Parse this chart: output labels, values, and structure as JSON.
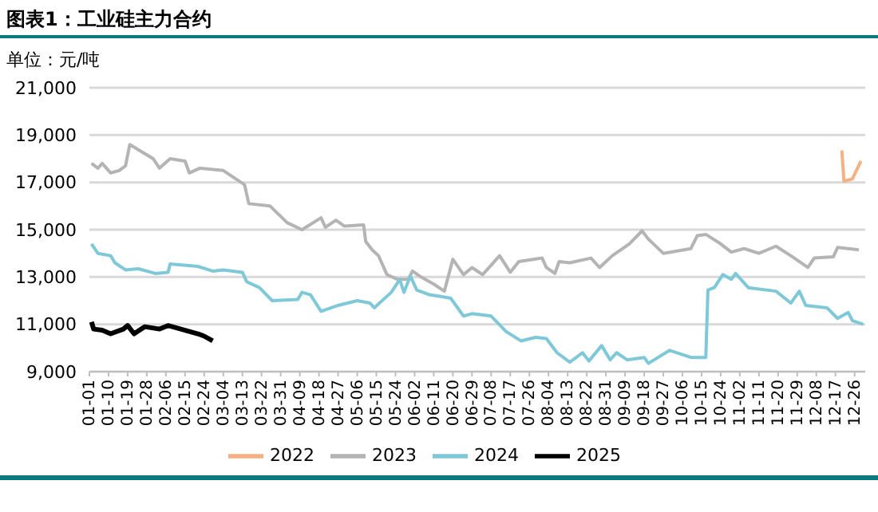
{
  "chart_data": {
    "type": "line",
    "title": "图表1：工业硅主力合约",
    "ylabel": "单位：元/吨",
    "xlim": [
      "--01-01",
      "--12-31"
    ],
    "xticks": [
      {
        "value": "--01-01",
        "label": "01-01"
      },
      {
        "value": "--01-10",
        "label": "01-10"
      },
      {
        "value": "--01-19",
        "label": "01-19"
      },
      {
        "value": "--01-28",
        "label": "01-28"
      },
      {
        "value": "--02-06",
        "label": "02-06"
      },
      {
        "value": "--02-15",
        "label": "02-15"
      },
      {
        "value": "--02-24",
        "label": "02-24"
      },
      {
        "value": "--03-04",
        "label": "03-04"
      },
      {
        "value": "--03-13",
        "label": "03-13"
      },
      {
        "value": "--03-22",
        "label": "03-22"
      },
      {
        "value": "--03-31",
        "label": "03-31"
      },
      {
        "value": "--04-09",
        "label": "04-09"
      },
      {
        "value": "--04-18",
        "label": "04-18"
      },
      {
        "value": "--04-27",
        "label": "04-27"
      },
      {
        "value": "--05-06",
        "label": "05-06"
      },
      {
        "value": "--05-15",
        "label": "05-15"
      },
      {
        "value": "--05-24",
        "label": "05-24"
      },
      {
        "value": "--06-02",
        "label": "06-02"
      },
      {
        "value": "--06-11",
        "label": "06-11"
      },
      {
        "value": "--06-20",
        "label": "06-20"
      },
      {
        "value": "--06-29",
        "label": "06-29"
      },
      {
        "value": "--07-08",
        "label": "07-08"
      },
      {
        "value": "--07-17",
        "label": "07-17"
      },
      {
        "value": "--07-26",
        "label": "07-26"
      },
      {
        "value": "--08-04",
        "label": "08-04"
      },
      {
        "value": "--08-13",
        "label": "08-13"
      },
      {
        "value": "--08-22",
        "label": "08-22"
      },
      {
        "value": "--08-31",
        "label": "08-31"
      },
      {
        "value": "--09-09",
        "label": "09-09"
      },
      {
        "value": "--09-18",
        "label": "09-18"
      },
      {
        "value": "--09-27",
        "label": "09-27"
      },
      {
        "value": "--10-06",
        "label": "10-06"
      },
      {
        "value": "--10-15",
        "label": "10-15"
      },
      {
        "value": "--10-24",
        "label": "10-24"
      },
      {
        "value": "--11-02",
        "label": "11-02"
      },
      {
        "value": "--11-11",
        "label": "11-11"
      },
      {
        "value": "--11-20",
        "label": "11-20"
      },
      {
        "value": "--11-29",
        "label": "11-29"
      },
      {
        "value": "--12-08",
        "label": "12-08"
      },
      {
        "value": "--12-17",
        "label": "12-17"
      },
      {
        "value": "--12-26",
        "label": "12-26"
      }
    ],
    "ylim": [
      9000,
      21000
    ],
    "yticks": [
      {
        "value": 9000,
        "label": "9,000"
      },
      {
        "value": 11000,
        "label": "11,000"
      },
      {
        "value": 13000,
        "label": "13,000"
      },
      {
        "value": 15000,
        "label": "15,000"
      },
      {
        "value": 17000,
        "label": "17,000"
      },
      {
        "value": 19000,
        "label": "19,000"
      },
      {
        "value": 21000,
        "label": "21,000"
      }
    ],
    "grid": "y",
    "legend": "bottom",
    "marker": "none",
    "line_style": "solid",
    "series": [
      {
        "name": "2022",
        "color": "#f4b183",
        "x": [
          "--12-20",
          "--12-21",
          "--12-25",
          "--12-29"
        ],
        "values": [
          18350,
          17050,
          17150,
          17900
        ]
      },
      {
        "name": "2023",
        "color": "#b4b4b4",
        "x": [
          "--01-02",
          "--01-05",
          "--01-07",
          "--01-11",
          "--01-15",
          "--01-18",
          "--01-20",
          "--01-31",
          "--02-03",
          "--02-08",
          "--02-15",
          "--02-17",
          "--02-22",
          "--03-04",
          "--03-14",
          "--03-16",
          "--03-26",
          "--04-03",
          "--04-10",
          "--04-19",
          "--04-21",
          "--04-26",
          "--04-30",
          "--05-09",
          "--05-10",
          "--05-13",
          "--05-16",
          "--05-20",
          "--05-25",
          "--05-30",
          "--06-01",
          "--06-05",
          "--06-11",
          "--06-16",
          "--06-20",
          "--06-25",
          "--06-29",
          "--07-04",
          "--07-12",
          "--07-17",
          "--07-21",
          "--08-01",
          "--08-03",
          "--08-07",
          "--08-09",
          "--08-14",
          "--08-24",
          "--08-28",
          "--09-03",
          "--09-11",
          "--09-17",
          "--09-20",
          "--09-27",
          "--10-10",
          "--10-13",
          "--10-17",
          "--10-24",
          "--10-29",
          "--11-04",
          "--11-11",
          "--11-19",
          "--11-26",
          "--12-04",
          "--12-07",
          "--12-16",
          "--12-18",
          "--12-28"
        ],
        "values": [
          17800,
          17600,
          17800,
          17400,
          17500,
          17700,
          18600,
          18000,
          17600,
          18000,
          17900,
          17400,
          17600,
          17500,
          16900,
          16100,
          16000,
          15300,
          15000,
          15500,
          15100,
          15400,
          15150,
          15200,
          14500,
          14150,
          13900,
          13100,
          12900,
          12900,
          13250,
          13000,
          12700,
          12400,
          13750,
          13100,
          13400,
          13100,
          13900,
          13200,
          13650,
          13800,
          13400,
          13150,
          13650,
          13600,
          13800,
          13400,
          13900,
          14400,
          14950,
          14600,
          14000,
          14200,
          14750,
          14800,
          14400,
          14050,
          14200,
          14000,
          14300,
          13900,
          13400,
          13800,
          13850,
          14250,
          14150
        ]
      },
      {
        "name": "2024",
        "color": "#7ec8d8",
        "x": [
          "--01-02",
          "--01-05",
          "--01-11",
          "--01-13",
          "--01-18",
          "--01-24",
          "--02-01",
          "--02-07",
          "--02-08",
          "--02-21",
          "--02-28",
          "--03-04",
          "--03-13",
          "--03-15",
          "--03-21",
          "--03-27",
          "--04-08",
          "--04-10",
          "--04-14",
          "--04-19",
          "--04-27",
          "--05-06",
          "--05-12",
          "--05-14",
          "--05-22",
          "--05-26",
          "--05-28",
          "--05-31",
          "--06-03",
          "--06-09",
          "--06-16",
          "--06-19",
          "--06-25",
          "--06-29",
          "--07-08",
          "--07-15",
          "--07-22",
          "--07-29",
          "--08-03",
          "--08-08",
          "--08-14",
          "--08-20",
          "--08-23",
          "--08-29",
          "--09-02",
          "--09-05",
          "--09-10",
          "--09-18",
          "--09-20",
          "--09-30",
          "--10-10",
          "--10-17",
          "--10-18",
          "--10-21",
          "--10-25",
          "--10-29",
          "--10-31",
          "--11-06",
          "--11-19",
          "--11-26",
          "--11-30",
          "--12-03",
          "--12-13",
          "--12-18",
          "--12-23",
          "--12-25",
          "--12-30"
        ],
        "values": [
          14400,
          14000,
          13900,
          13600,
          13300,
          13350,
          13150,
          13200,
          13550,
          13450,
          13250,
          13300,
          13200,
          12800,
          12550,
          12000,
          12050,
          12350,
          12250,
          11550,
          11800,
          12000,
          11900,
          11700,
          12350,
          12900,
          12350,
          13050,
          12450,
          12250,
          12150,
          12100,
          11350,
          11450,
          11350,
          10700,
          10300,
          10450,
          10400,
          9800,
          9400,
          9800,
          9450,
          10100,
          9500,
          9800,
          9500,
          9600,
          9350,
          9900,
          9600,
          9600,
          12450,
          12550,
          13100,
          12900,
          13150,
          12550,
          12400,
          11900,
          12400,
          11800,
          11700,
          11250,
          11500,
          11150,
          11000
        ]
      },
      {
        "name": "2025",
        "color": "#000000",
        "x": [
          "--01-02",
          "--01-03",
          "--01-07",
          "--01-11",
          "--01-17",
          "--01-19",
          "--01-22",
          "--01-27",
          "--02-03",
          "--02-07",
          "--02-17",
          "--02-21",
          "--02-24",
          "--02-28"
        ],
        "values": [
          11100,
          10800,
          10750,
          10600,
          10800,
          10950,
          10600,
          10900,
          10800,
          10950,
          10700,
          10600,
          10500,
          10300
        ]
      }
    ]
  }
}
